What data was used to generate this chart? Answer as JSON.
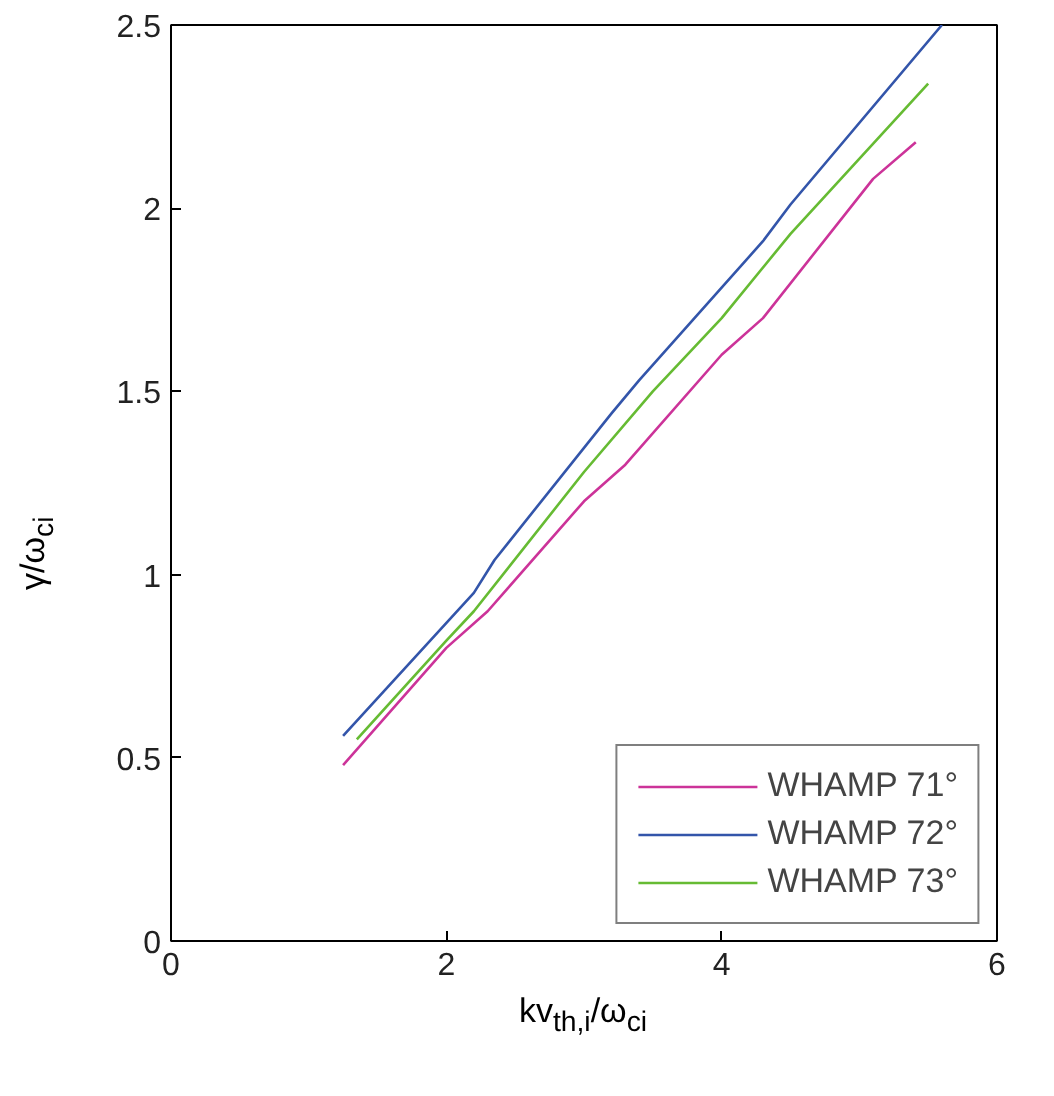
{
  "chart_data": {
    "type": "line",
    "xlabel": "kv$_{th,i}$/ω$_{ci}$",
    "ylabel": "γ/ω$_{ci}$",
    "xlim": [
      0,
      6
    ],
    "ylim": [
      0,
      2.5
    ],
    "xticks": [
      0,
      2,
      4,
      6
    ],
    "yticks": [
      0,
      0.5,
      1,
      1.5,
      2,
      2.5
    ],
    "grid": false,
    "legend": "bottom right",
    "line_style": "solid",
    "series": [
      {
        "name": "WHAMP 71°",
        "color": "#cc3399",
        "x": [
          1.25,
          2.0,
          2.3,
          3.0,
          3.3,
          4.0,
          4.3,
          5.1,
          5.41
        ],
        "values": [
          0.48,
          0.8,
          0.9,
          1.2,
          1.3,
          1.6,
          1.7,
          2.08,
          2.18
        ]
      },
      {
        "name": "WHAMP 72°",
        "color": "#3355aa",
        "x": [
          1.25,
          2.2,
          2.35,
          3.2,
          3.4,
          4.3,
          4.5,
          5.6
        ],
        "values": [
          0.56,
          0.95,
          1.04,
          1.44,
          1.53,
          1.91,
          2.01,
          2.5
        ]
      },
      {
        "name": "WHAMP 73°",
        "color": "#66bb33",
        "x": [
          1.35,
          2.0,
          2.2,
          3.0,
          3.5,
          4.0,
          4.5,
          5.5
        ],
        "values": [
          0.55,
          0.82,
          0.9,
          1.28,
          1.5,
          1.7,
          1.93,
          2.34
        ]
      }
    ]
  }
}
